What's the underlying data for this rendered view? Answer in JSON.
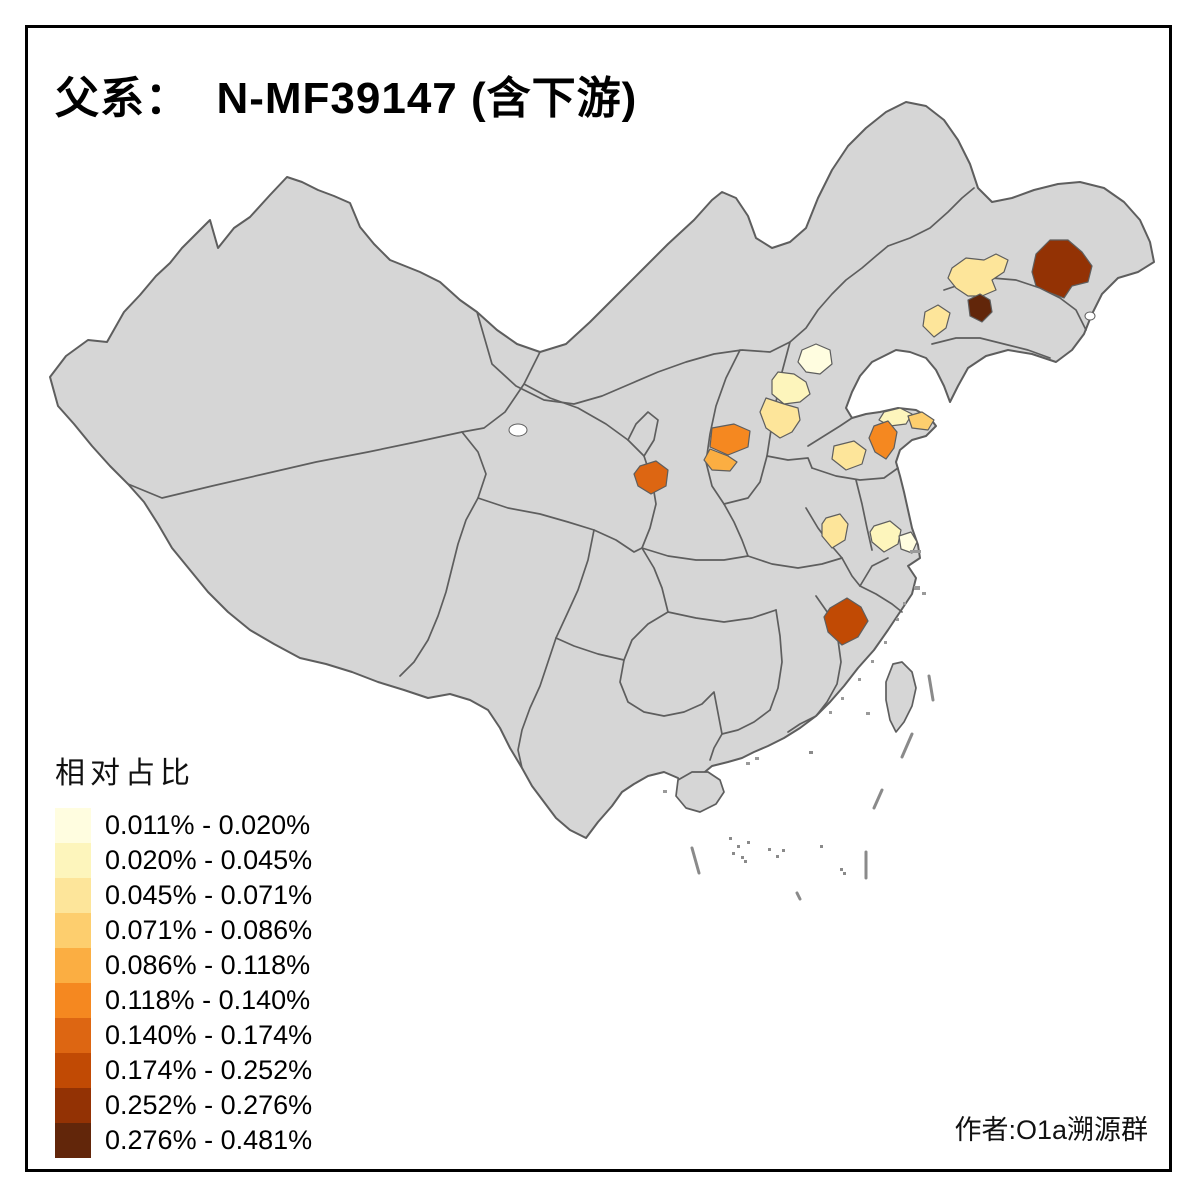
{
  "title": "父系：  N-MF39147 (含下游)",
  "attribution": "作者:O1a溯源群",
  "legend": {
    "title": "相对占比",
    "items": [
      {
        "range": "0.011% - 0.020%",
        "color": "#FFFDE0"
      },
      {
        "range": "0.020% - 0.045%",
        "color": "#FDF5BC"
      },
      {
        "range": "0.045% - 0.071%",
        "color": "#FDE59A"
      },
      {
        "range": "0.071% - 0.086%",
        "color": "#FDCE6E"
      },
      {
        "range": "0.086% - 0.118%",
        "color": "#FBAE42"
      },
      {
        "range": "0.118% - 0.140%",
        "color": "#F58820"
      },
      {
        "range": "0.140% - 0.174%",
        "color": "#DD6612"
      },
      {
        "range": "0.174% - 0.252%",
        "color": "#C14A04"
      },
      {
        "range": "0.252% - 0.276%",
        "color": "#933204"
      },
      {
        "range": "0.276% - 0.481%",
        "color": "#62260A"
      }
    ]
  },
  "map": {
    "colors": {
      "land": "#D6D6D6",
      "border": "#5E5E5E",
      "sea": "#FFFFFF",
      "frame": "#000000"
    },
    "regions": {
      "r1": {
        "color": "#FDE59A",
        "range": "0.045% - 0.071%"
      },
      "r2": {
        "color": "#933204",
        "range": "0.252% - 0.276%"
      },
      "r3": {
        "color": "#62260A",
        "range": "0.276% - 0.481%"
      },
      "r4": {
        "color": "#FDE59A",
        "range": "0.045% - 0.071%"
      },
      "r5": {
        "color": "#FFFDE0",
        "range": "0.011% - 0.020%"
      },
      "r6": {
        "color": "#FDF5BC",
        "range": "0.020% - 0.045%"
      },
      "r7": {
        "color": "#FDE59A",
        "range": "0.045% - 0.071%"
      },
      "r8": {
        "color": "#FDF5BC",
        "range": "0.020% - 0.045%"
      },
      "r9": {
        "color": "#FDCE6E",
        "range": "0.071% - 0.086%"
      },
      "r10": {
        "color": "#F58820",
        "range": "0.118% - 0.140%"
      },
      "r11": {
        "color": "#FDE59A",
        "range": "0.045% - 0.071%"
      },
      "r12": {
        "color": "#F58820",
        "range": "0.118% - 0.140%"
      },
      "r13": {
        "color": "#FBAE42",
        "range": "0.086% - 0.118%"
      },
      "r14": {
        "color": "#DD6612",
        "range": "0.140% - 0.174%"
      },
      "r15": {
        "color": "#FDE59A",
        "range": "0.045% - 0.071%"
      },
      "r16": {
        "color": "#FDF5BC",
        "range": "0.020% - 0.045%"
      },
      "r17": {
        "color": "#FFFDE0",
        "range": "0.011% - 0.020%"
      },
      "r18": {
        "color": "#C14A04",
        "range": "0.174% - 0.252%"
      }
    }
  }
}
